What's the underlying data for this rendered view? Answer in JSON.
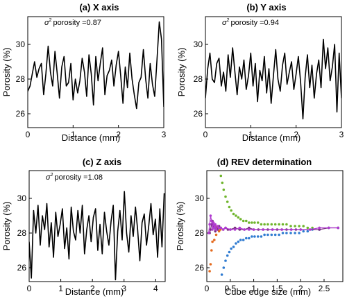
{
  "chart_data": [
    {
      "type": "line",
      "title": "(a) X axis",
      "xlabel": "Distance (mm)",
      "ylabel": "Porosity (%)",
      "xlim": [
        0,
        3
      ],
      "ylim": [
        25.2,
        31.6
      ],
      "xticks": [
        "0",
        "1",
        "2",
        "3"
      ],
      "yticks": [
        "26",
        "28",
        "30"
      ],
      "annotation_sup": "2",
      "annotation": "porosity =0.87",
      "series": [
        {
          "color": "#000000",
          "x": [
            0,
            0.05,
            0.1,
            0.15,
            0.2,
            0.25,
            0.3,
            0.35,
            0.4,
            0.45,
            0.5,
            0.55,
            0.6,
            0.65,
            0.7,
            0.75,
            0.8,
            0.85,
            0.9,
            0.95,
            1.0,
            1.05,
            1.1,
            1.15,
            1.2,
            1.25,
            1.3,
            1.35,
            1.4,
            1.45,
            1.5,
            1.55,
            1.6,
            1.65,
            1.7,
            1.75,
            1.8,
            1.85,
            1.9,
            1.95,
            2.0,
            2.05,
            2.1,
            2.15,
            2.2,
            2.25,
            2.3,
            2.35,
            2.4,
            2.45,
            2.5,
            2.55,
            2.6,
            2.65,
            2.7,
            2.75,
            2.8,
            2.85,
            2.9,
            2.95,
            3.0
          ],
          "y": [
            27.3,
            27.6,
            28.3,
            29.0,
            28.1,
            28.6,
            28.9,
            27.1,
            28.3,
            29.9,
            28.4,
            27.6,
            29.6,
            28.3,
            26.9,
            28.7,
            29.3,
            27.6,
            27.8,
            28.9,
            26.8,
            28.0,
            27.2,
            27.9,
            29.2,
            28.4,
            27.0,
            29.4,
            28.3,
            26.5,
            29.3,
            27.9,
            28.9,
            29.8,
            27.1,
            28.2,
            28.5,
            29.1,
            27.6,
            28.8,
            29.6,
            28.2,
            26.6,
            28.7,
            27.5,
            29.5,
            28.0,
            27.1,
            26.3,
            27.8,
            28.1,
            29.7,
            28.0,
            26.9,
            28.9,
            27.7,
            27.0,
            29.1,
            31.3,
            30.3,
            26.4
          ]
        }
      ]
    },
    {
      "type": "line",
      "title": "(b) Y axis",
      "xlabel": "Distance (mm)",
      "ylabel": "Porosity (%)",
      "xlim": [
        0,
        3
      ],
      "ylim": [
        25.2,
        31.6
      ],
      "xticks": [
        "0",
        "1",
        "2",
        "3"
      ],
      "yticks": [
        "26",
        "28",
        "30"
      ],
      "annotation_sup": "2",
      "annotation": "porosity =0.94",
      "series": [
        {
          "color": "#000000",
          "x": [
            0,
            0.05,
            0.1,
            0.15,
            0.2,
            0.25,
            0.3,
            0.35,
            0.4,
            0.45,
            0.5,
            0.55,
            0.6,
            0.65,
            0.7,
            0.75,
            0.8,
            0.85,
            0.9,
            0.95,
            1.0,
            1.05,
            1.1,
            1.15,
            1.2,
            1.25,
            1.3,
            1.35,
            1.4,
            1.45,
            1.5,
            1.55,
            1.6,
            1.65,
            1.7,
            1.75,
            1.8,
            1.85,
            1.9,
            1.95,
            2.0,
            2.05,
            2.1,
            2.15,
            2.2,
            2.25,
            2.3,
            2.35,
            2.4,
            2.45,
            2.5,
            2.55,
            2.6,
            2.65,
            2.7,
            2.75,
            2.8,
            2.85,
            2.9,
            2.95,
            3.0
          ],
          "y": [
            26.9,
            28.6,
            29.5,
            28.0,
            27.8,
            28.9,
            29.2,
            27.6,
            28.4,
            27.3,
            29.4,
            28.1,
            29.8,
            28.4,
            27.1,
            28.7,
            28.0,
            29.1,
            27.4,
            28.2,
            29.5,
            27.6,
            28.9,
            26.7,
            28.5,
            27.9,
            29.3,
            27.2,
            28.6,
            26.6,
            28.2,
            29.7,
            28.0,
            27.3,
            28.8,
            29.5,
            27.7,
            28.4,
            29.0,
            27.4,
            28.3,
            29.3,
            27.8,
            25.7,
            28.1,
            29.4,
            27.5,
            28.8,
            26.9,
            28.3,
            29.1,
            27.5,
            30.3,
            28.6,
            29.8,
            27.9,
            28.7,
            30.0,
            26.1,
            29.5,
            26.9
          ]
        }
      ]
    },
    {
      "type": "line",
      "title": "(c) Z axis",
      "xlabel": "Distance (mm)",
      "ylabel": "Porosity (%)",
      "xlim": [
        0,
        4.3
      ],
      "ylim": [
        25.2,
        31.6
      ],
      "xticks": [
        "0",
        "1",
        "2",
        "3",
        "4"
      ],
      "yticks": [
        "26",
        "28",
        "30"
      ],
      "annotation_sup": "2",
      "annotation": "porosity =1.08",
      "series": [
        {
          "color": "#000000",
          "x": [
            0,
            0.07,
            0.14,
            0.21,
            0.28,
            0.35,
            0.42,
            0.49,
            0.56,
            0.63,
            0.7,
            0.77,
            0.84,
            0.91,
            0.98,
            1.05,
            1.12,
            1.19,
            1.26,
            1.33,
            1.4,
            1.47,
            1.54,
            1.61,
            1.68,
            1.75,
            1.82,
            1.89,
            1.96,
            2.03,
            2.1,
            2.17,
            2.24,
            2.31,
            2.38,
            2.45,
            2.52,
            2.59,
            2.66,
            2.73,
            2.8,
            2.87,
            2.94,
            3.01,
            3.08,
            3.15,
            3.22,
            3.29,
            3.36,
            3.43,
            3.5,
            3.57,
            3.64,
            3.71,
            3.78,
            3.85,
            3.92,
            3.99,
            4.06,
            4.13,
            4.2,
            4.27
          ],
          "y": [
            27.5,
            25.4,
            29.3,
            28.0,
            29.6,
            27.3,
            29.0,
            28.2,
            29.7,
            27.2,
            28.6,
            26.6,
            29.2,
            27.8,
            28.5,
            29.4,
            27.1,
            28.3,
            26.5,
            29.5,
            28.1,
            27.6,
            29.3,
            28.0,
            29.6,
            26.8,
            28.2,
            29.0,
            27.5,
            28.9,
            29.4,
            27.0,
            28.5,
            26.8,
            29.2,
            28.1,
            27.3,
            28.7,
            29.6,
            25.3,
            28.1,
            29.3,
            27.6,
            30.4,
            28.0,
            26.9,
            29.0,
            27.8,
            29.5,
            28.2,
            26.4,
            28.6,
            29.1,
            27.3,
            28.4,
            29.7,
            27.9,
            28.8,
            26.6,
            29.4,
            27.2,
            30.3
          ]
        }
      ]
    },
    {
      "type": "scatter",
      "title": "(d) REV determination",
      "xlabel": "Cube edge size (mm)",
      "ylabel": "Porosity (%)",
      "xlim": [
        0,
        2.9
      ],
      "ylim": [
        25.2,
        31.6
      ],
      "xticks": [
        "0",
        "0.5",
        "1",
        "1.5",
        "2",
        "2.5"
      ],
      "yticks": [
        "26",
        "28",
        "30"
      ],
      "series": [
        {
          "color": "#6fb52c",
          "x": [
            0.3,
            0.33,
            0.36,
            0.4,
            0.44,
            0.48,
            0.52,
            0.57,
            0.62,
            0.67,
            0.72,
            0.78,
            0.84,
            0.9,
            0.96,
            1.02,
            1.09,
            1.16,
            1.23,
            1.3,
            1.38,
            1.46,
            1.54,
            1.62,
            1.7,
            1.79,
            1.88,
            1.97,
            2.06,
            2.15,
            2.25,
            2.4,
            2.6,
            2.8
          ],
          "y": [
            31.3,
            30.9,
            30.5,
            30.1,
            29.8,
            29.5,
            29.3,
            29.1,
            29.0,
            28.9,
            28.8,
            28.7,
            28.7,
            28.6,
            28.6,
            28.6,
            28.6,
            28.5,
            28.5,
            28.5,
            28.5,
            28.5,
            28.5,
            28.5,
            28.5,
            28.4,
            28.4,
            28.4,
            28.4,
            28.3,
            28.3,
            28.3,
            28.3,
            28.3
          ]
        },
        {
          "color": "#2f7bd1",
          "x": [
            0.32,
            0.36,
            0.4,
            0.44,
            0.48,
            0.52,
            0.57,
            0.62,
            0.67,
            0.72,
            0.78,
            0.84,
            0.9,
            0.96,
            1.02,
            1.09,
            1.16,
            1.23,
            1.3,
            1.38,
            1.46,
            1.54,
            1.62,
            1.7,
            1.79,
            1.88,
            1.97,
            2.06,
            2.15,
            2.25,
            2.4,
            2.6,
            2.8
          ],
          "y": [
            25.6,
            26.0,
            26.4,
            26.7,
            26.9,
            27.1,
            27.2,
            27.4,
            27.5,
            27.6,
            27.6,
            27.7,
            27.7,
            27.8,
            27.8,
            27.8,
            27.8,
            27.9,
            27.9,
            27.9,
            27.9,
            27.9,
            28.0,
            28.0,
            28.0,
            28.0,
            28.0,
            28.1,
            28.1,
            28.2,
            28.2,
            28.3,
            28.3
          ]
        },
        {
          "color": "#e46b1f",
          "x": [
            0.06,
            0.08,
            0.1,
            0.12,
            0.14,
            0.16,
            0.18,
            0.2,
            0.23,
            0.26,
            0.29
          ],
          "y": [
            25.8,
            26.2,
            27.0,
            27.5,
            28.6,
            27.6,
            28.4,
            27.9,
            28.3,
            28.1,
            28.2
          ]
        },
        {
          "color": "#7a2f80",
          "x": [
            0.06,
            0.08,
            0.1,
            0.12,
            0.14,
            0.16,
            0.18,
            0.2,
            0.23,
            0.26,
            0.3,
            0.35,
            0.4,
            0.45,
            0.5,
            0.6,
            0.7,
            0.8,
            0.9,
            1.0,
            1.1,
            1.2,
            1.3,
            1.4,
            1.5,
            1.6,
            1.7,
            1.8,
            1.9,
            2.0,
            2.2,
            2.4,
            2.6,
            2.8
          ],
          "y": [
            28.0,
            28.2,
            28.5,
            28.7,
            28.4,
            28.3,
            28.1,
            28.3,
            28.2,
            28.4,
            28.3,
            28.2,
            28.3,
            28.2,
            28.2,
            28.3,
            28.2,
            28.2,
            28.3,
            28.2,
            28.2,
            28.2,
            28.2,
            28.2,
            28.2,
            28.2,
            28.2,
            28.2,
            28.2,
            28.2,
            28.2,
            28.2,
            28.3,
            28.3
          ]
        },
        {
          "color": "#b03ad0",
          "x": [
            0.04,
            0.06,
            0.08,
            0.1,
            0.12,
            0.14,
            0.16,
            0.18,
            0.2,
            0.23,
            0.26,
            0.3,
            0.35,
            0.4,
            0.5,
            0.6,
            0.7,
            0.8,
            0.9,
            1.0,
            1.2,
            1.4,
            1.6,
            1.8,
            2.0,
            2.2,
            2.4,
            2.6,
            2.8
          ],
          "y": [
            28.0,
            28.5,
            29.0,
            28.7,
            28.2,
            28.6,
            28.3,
            28.5,
            28.2,
            28.4,
            28.3,
            28.3,
            28.2,
            28.3,
            28.2,
            28.2,
            28.3,
            28.2,
            28.2,
            28.2,
            28.2,
            28.2,
            28.2,
            28.2,
            28.2,
            28.2,
            28.3,
            28.3,
            28.3
          ]
        }
      ]
    }
  ]
}
